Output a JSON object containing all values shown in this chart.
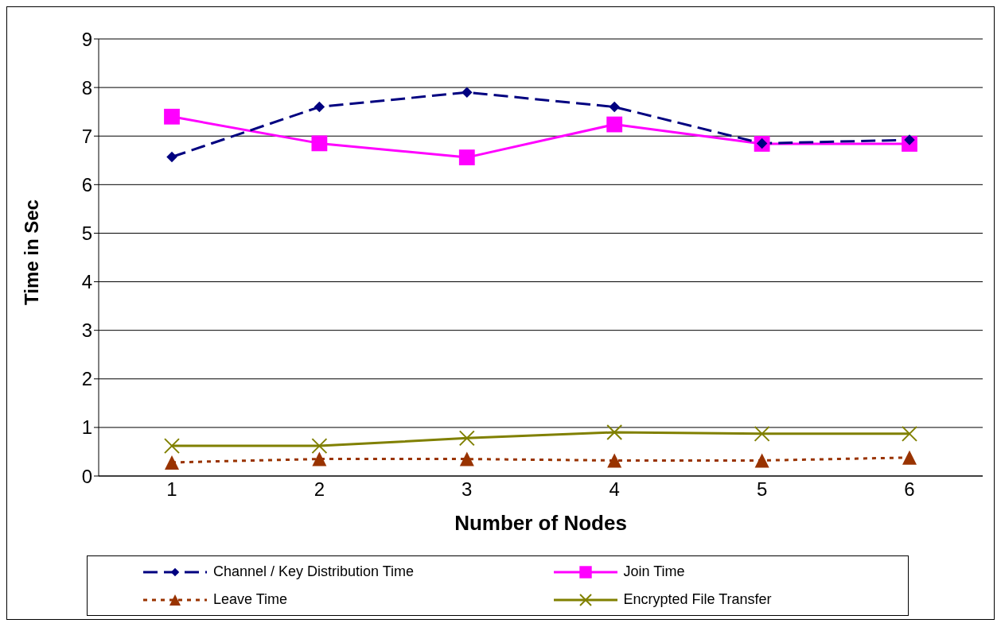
{
  "chart_data": {
    "type": "line",
    "xlabel": "Number of Nodes",
    "ylabel": "Time in Sec",
    "categories": [
      "1",
      "2",
      "3",
      "4",
      "5",
      "6"
    ],
    "series": [
      {
        "name": "Channel / Key Distribution Time",
        "color": "#000080",
        "marker": "diamond",
        "line_style": "dashed",
        "values": [
          6.57,
          7.6,
          7.9,
          7.6,
          6.85,
          6.92
        ]
      },
      {
        "name": "Join Time",
        "color": "#ff00ff",
        "marker": "square",
        "line_style": "solid",
        "values": [
          7.4,
          6.85,
          6.56,
          7.24,
          6.84,
          6.84
        ]
      },
      {
        "name": "Leave Time",
        "color": "#993300",
        "marker": "triangle",
        "line_style": "dotted",
        "values": [
          0.28,
          0.35,
          0.35,
          0.32,
          0.32,
          0.38
        ]
      },
      {
        "name": "Encrypted File Transfer",
        "color": "#808000",
        "marker": "cross",
        "line_style": "solid",
        "values": [
          0.62,
          0.62,
          0.78,
          0.9,
          0.87,
          0.87
        ]
      }
    ],
    "ylim": [
      0,
      9
    ],
    "yticks": [
      0,
      1,
      2,
      3,
      4,
      5,
      6,
      7,
      8,
      9
    ],
    "grid": "y",
    "legend": "bottom"
  }
}
